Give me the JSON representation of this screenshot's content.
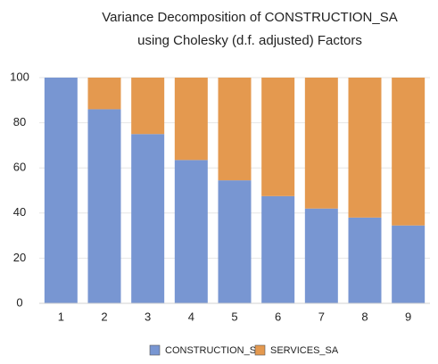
{
  "chart_data": {
    "type": "stacked_bar",
    "title": [
      "Variance Decomposition of CONSTRUCTION_SA",
      "using Cholesky (d.f. adjusted) Factors"
    ],
    "categories": [
      "1",
      "2",
      "3",
      "4",
      "5",
      "6",
      "7",
      "8",
      "9"
    ],
    "series": [
      {
        "name": "CONSTRUCTION_SA",
        "color": "#7896d2",
        "values": [
          100,
          86,
          75,
          63.5,
          54.5,
          47.5,
          42,
          38,
          34.5
        ]
      },
      {
        "name": "SERVICES_SA",
        "color": "#e4994f",
        "values": [
          0,
          14,
          25,
          36.5,
          45.5,
          52.5,
          58,
          62,
          65.5
        ]
      }
    ],
    "ylim": [
      0,
      100
    ],
    "yticks": [
      0,
      20,
      40,
      60,
      80,
      100
    ],
    "grid": true,
    "legend": "bottom"
  }
}
